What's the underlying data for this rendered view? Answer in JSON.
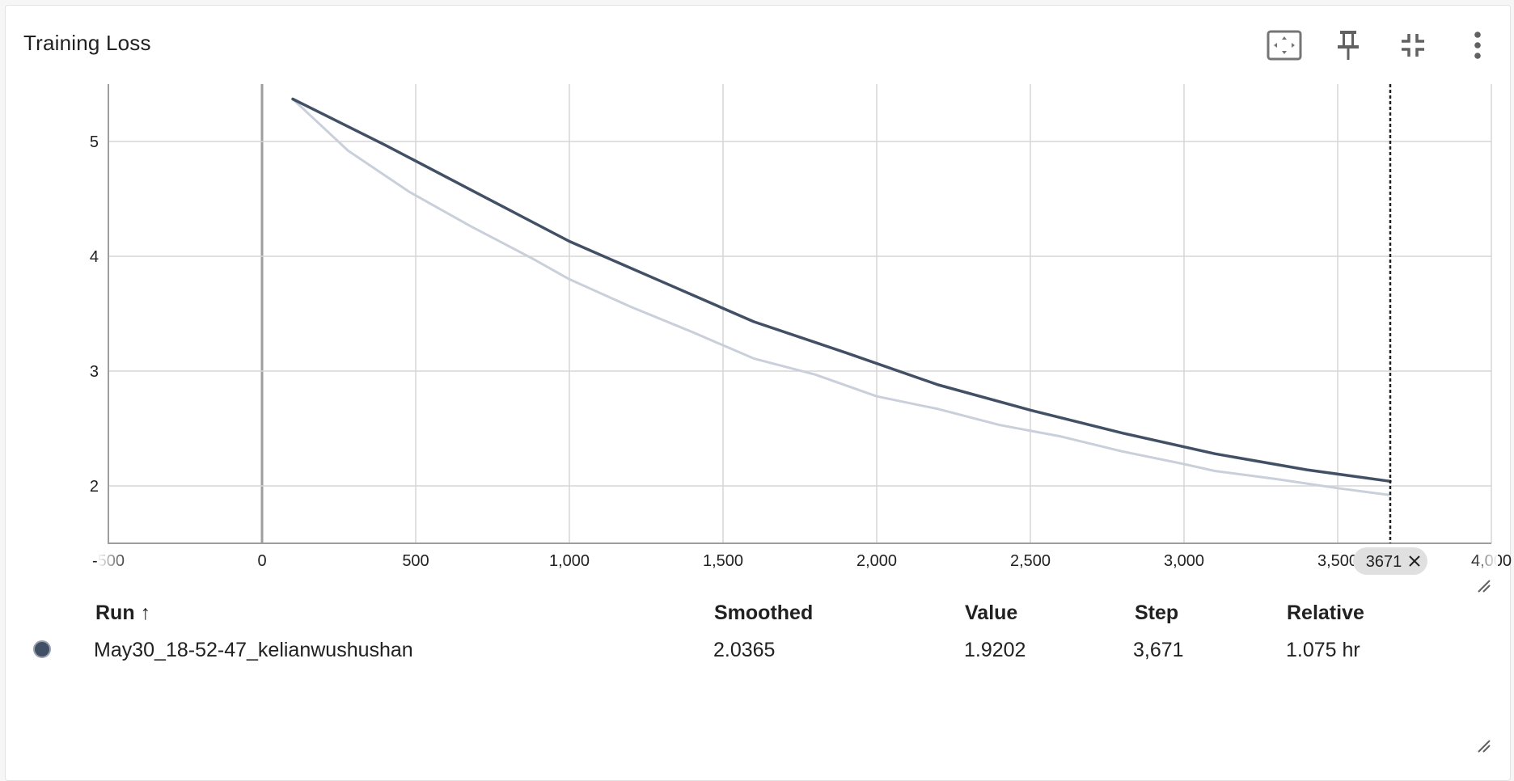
{
  "card": {
    "title": "Training Loss"
  },
  "toolbar": {
    "icons": [
      "fit-domain-icon",
      "pin-icon",
      "collapse-icon",
      "more-vert-icon"
    ]
  },
  "colors": {
    "smoothed": "#425066",
    "raw": "#c9d0db",
    "grid": "#d6d6d6",
    "axis": "#9e9e9e",
    "hover_line": "#212121",
    "hover_badge": "#e0e0e0"
  },
  "chart_data": {
    "type": "line",
    "title": "Training Loss",
    "xlabel": "",
    "ylabel": "",
    "xlim": [
      -500,
      4000
    ],
    "ylim": [
      1.5,
      5.5
    ],
    "x_ticks": [
      -500,
      0,
      500,
      1000,
      1500,
      2000,
      2500,
      3000,
      3500,
      4000
    ],
    "x_tick_labels": [
      "-500",
      "0",
      "500",
      "1,000",
      "1,500",
      "2,000",
      "2,500",
      "3,000",
      "3,500",
      "4,000"
    ],
    "y_ticks": [
      2,
      3,
      4,
      5
    ],
    "y_tick_labels": [
      "2",
      "3",
      "4",
      "5"
    ],
    "grid": true,
    "hover_step": 3671,
    "hover_label": "3671",
    "series": [
      {
        "role": "raw",
        "x": [
          100,
          280,
          480,
          680,
          880,
          1000,
          1200,
          1400,
          1600,
          1800,
          2000,
          2200,
          2400,
          2600,
          2800,
          3000,
          3100,
          3300,
          3500,
          3671
        ],
        "y": [
          5.37,
          4.92,
          4.56,
          4.26,
          3.98,
          3.8,
          3.56,
          3.34,
          3.11,
          2.97,
          2.78,
          2.67,
          2.53,
          2.43,
          2.3,
          2.19,
          2.13,
          2.06,
          1.98,
          1.92
        ]
      },
      {
        "role": "smoothed",
        "x": [
          100,
          400,
          700,
          1000,
          1300,
          1600,
          1900,
          2200,
          2500,
          2800,
          3100,
          3400,
          3671
        ],
        "y": [
          5.37,
          4.97,
          4.55,
          4.13,
          3.78,
          3.43,
          3.16,
          2.88,
          2.66,
          2.46,
          2.28,
          2.14,
          2.04
        ]
      }
    ]
  },
  "table": {
    "headers": {
      "run": "Run",
      "sort_arrow": "↑",
      "smoothed": "Smoothed",
      "value": "Value",
      "step": "Step",
      "relative": "Relative"
    },
    "rows": [
      {
        "run": "May30_18-52-47_kelianwushushan",
        "smoothed": "2.0365",
        "value": "1.9202",
        "step": "3,671",
        "relative": "1.075 hr"
      }
    ]
  }
}
